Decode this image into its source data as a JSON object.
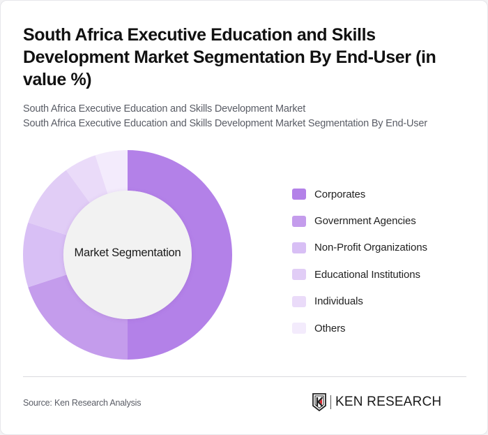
{
  "header": {
    "title": "South Africa Executive Education and Skills Development Market Segmentation By End-User (in value %)",
    "subtitle_line1": "South Africa Executive Education and Skills Development Market",
    "subtitle_line2": "South Africa Executive Education and Skills Development Market Segmentation By End-User"
  },
  "chart": {
    "center_label": "Market Segmentation"
  },
  "legend": [
    {
      "label": "Corporates",
      "color": "#b381e8"
    },
    {
      "label": "Government Agencies",
      "color": "#c49cec"
    },
    {
      "label": "Non-Profit Organizations",
      "color": "#d8bff5"
    },
    {
      "label": "Educational Institutions",
      "color": "#e1cdf6"
    },
    {
      "label": "Individuals",
      "color": "#eadbf9"
    },
    {
      "label": "Others",
      "color": "#f3ebfc"
    }
  ],
  "footer": {
    "source": "Source: Ken Research Analysis",
    "logo_text": "KEN RESEARCH"
  },
  "chart_data": {
    "type": "pie",
    "title": "South Africa Executive Education and Skills Development Market Segmentation By End-User (in value %)",
    "subtitle": "South Africa Executive Education and Skills Development Market",
    "center_label": "Market Segmentation",
    "categories": [
      "Corporates",
      "Government Agencies",
      "Non-Profit Organizations",
      "Educational Institutions",
      "Individuals",
      "Others"
    ],
    "values": [
      50,
      20,
      10,
      10,
      5,
      5
    ],
    "colors": [
      "#b381e8",
      "#c49cec",
      "#d8bff5",
      "#e1cdf6",
      "#eadbf9",
      "#f3ebfc"
    ],
    "donut": true,
    "legend_position": "right",
    "start_angle_deg": 0,
    "direction": "clockwise"
  }
}
